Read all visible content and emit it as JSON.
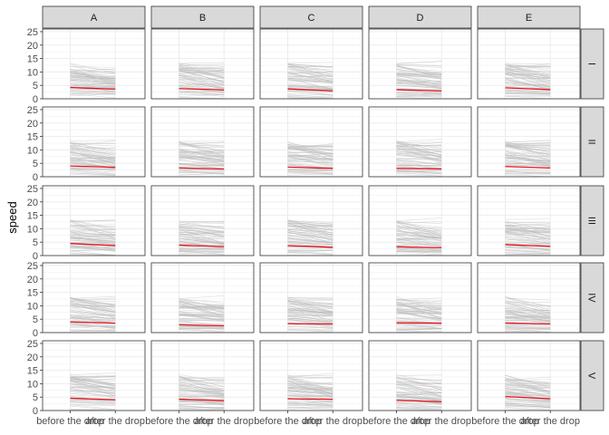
{
  "chart_data": {
    "type": "line",
    "facet_columns": [
      "A",
      "B",
      "C",
      "D",
      "E"
    ],
    "facet_rows": [
      "I",
      "II",
      "III",
      "IV",
      "V"
    ],
    "categories": [
      "before the drop",
      "after the drop"
    ],
    "ylabel": "speed",
    "xlabel": "",
    "ylim": [
      0,
      26
    ],
    "y_ticks": [
      0,
      5,
      10,
      15,
      20,
      25
    ],
    "grid": true,
    "colors": {
      "mean_line": "#e8141c",
      "individual_lines": "#bdbdbd",
      "strip_fill": "#d9d9d9",
      "panel_border": "#333333",
      "grid": "#ebebeb"
    },
    "mean_series": [
      [
        [
          4.2,
          3.6
        ],
        [
          3.8,
          3.3
        ],
        [
          3.7,
          3.0
        ],
        [
          3.4,
          2.9
        ],
        [
          4.1,
          3.4
        ]
      ],
      [
        [
          4.0,
          3.5
        ],
        [
          3.3,
          2.9
        ],
        [
          3.6,
          3.1
        ],
        [
          3.1,
          2.9
        ],
        [
          3.8,
          3.3
        ]
      ],
      [
        [
          4.5,
          3.7
        ],
        [
          3.9,
          3.3
        ],
        [
          3.7,
          3.1
        ],
        [
          3.3,
          2.9
        ],
        [
          4.1,
          3.4
        ]
      ],
      [
        [
          4.0,
          3.5
        ],
        [
          2.9,
          2.5
        ],
        [
          3.3,
          3.2
        ],
        [
          3.7,
          3.5
        ],
        [
          3.6,
          3.2
        ]
      ],
      [
        [
          4.6,
          4.0
        ],
        [
          4.2,
          3.7
        ],
        [
          4.4,
          4.2
        ],
        [
          3.8,
          3.3
        ],
        [
          5.2,
          4.4
        ]
      ]
    ]
  }
}
